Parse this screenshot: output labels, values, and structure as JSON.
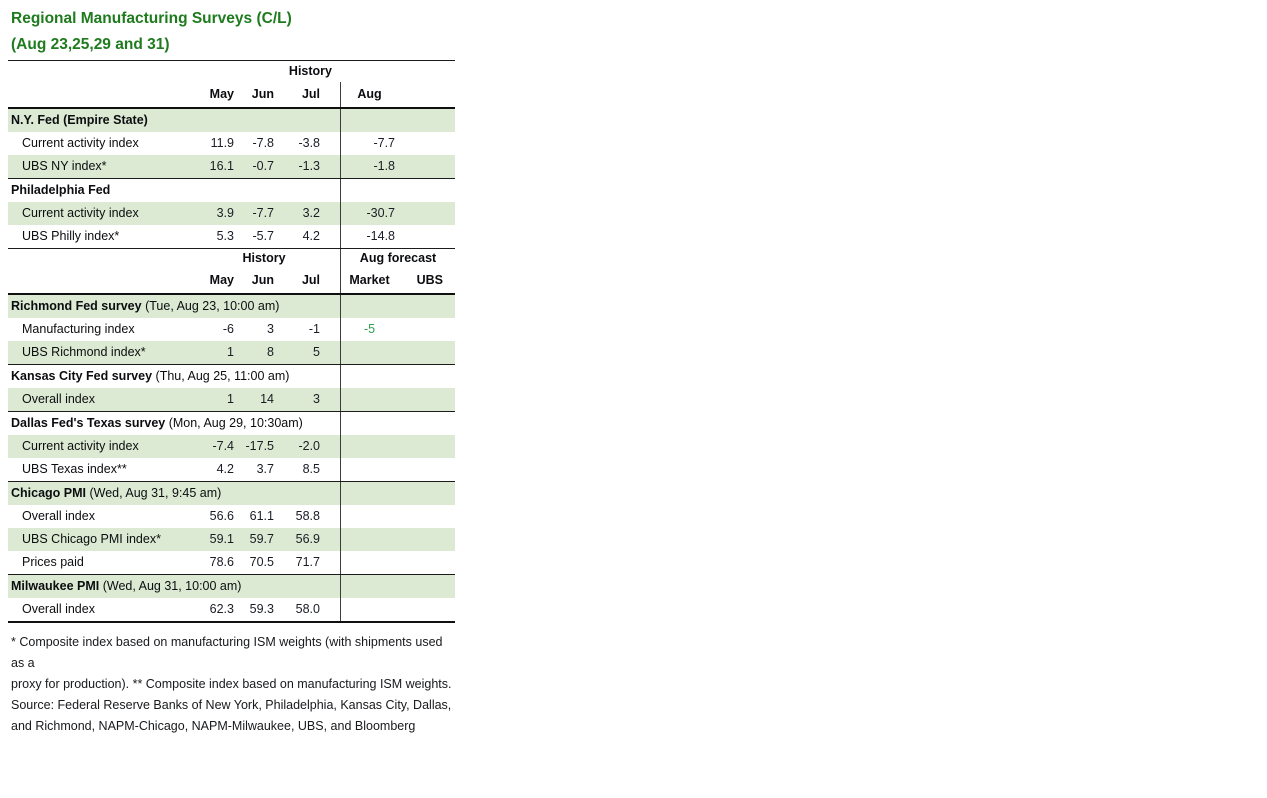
{
  "title": {
    "line1": "Regional Manufacturing Surveys (C/L)",
    "line2": "(Aug 23,25,29 and 31)"
  },
  "colors": {
    "title_green": "#1e7b1e",
    "row_shade": "#dcead3",
    "forecast_green": "#2f9e4f",
    "ink": "#191c24"
  },
  "block1": {
    "history_label": "History",
    "columns": [
      "May",
      "Jun",
      "Jul"
    ],
    "aug_label": "Aug",
    "sections": [
      {
        "header": "N.Y. Fed (Empire State)",
        "rows": [
          {
            "label": "Current activity index",
            "may": "11.9",
            "jun": "-7.8",
            "jul": "-3.8",
            "aug": "-7.7"
          },
          {
            "label": "UBS NY index*",
            "may": "16.1",
            "jun": "-0.7",
            "jul": "-1.3",
            "aug": "-1.8"
          }
        ]
      },
      {
        "header": "Philadelphia Fed",
        "rows": [
          {
            "label": "Current activity index",
            "may": "3.9",
            "jun": "-7.7",
            "jul": "3.2",
            "aug": "-30.7"
          },
          {
            "label": "UBS Philly index*",
            "may": "5.3",
            "jun": "-5.7",
            "jul": "4.2",
            "aug": "-14.8"
          }
        ]
      }
    ]
  },
  "block2": {
    "history_label": "History",
    "forecast_label": "Aug forecast",
    "columns": [
      "May",
      "Jun",
      "Jul"
    ],
    "forecast_columns": [
      "Market",
      "UBS"
    ],
    "sections": [
      {
        "header": "Richmond Fed survey",
        "header_note": "(Tue, Aug 23, 10:00 am)",
        "rows": [
          {
            "label": "Manufacturing index",
            "may": "-6",
            "jun": "3",
            "jul": "-1",
            "market": "-5",
            "ubs": ""
          },
          {
            "label": "UBS Richmond index*",
            "may": "1",
            "jun": "8",
            "jul": "5",
            "market": "",
            "ubs": ""
          }
        ]
      },
      {
        "header": "Kansas City Fed survey",
        "header_note": "(Thu, Aug 25, 11:00 am)",
        "rows": [
          {
            "label": "Overall index",
            "may": "1",
            "jun": "14",
            "jul": "3",
            "market": "",
            "ubs": ""
          }
        ]
      },
      {
        "header": "Dallas Fed's Texas survey",
        "header_note": "(Mon, Aug 29, 10:30am)",
        "rows": [
          {
            "label": "Current activity index",
            "may": "-7.4",
            "jun": "-17.5",
            "jul": "-2.0",
            "market": "",
            "ubs": ""
          },
          {
            "label": "UBS Texas index**",
            "may": "4.2",
            "jun": "3.7",
            "jul": "8.5",
            "market": "",
            "ubs": ""
          }
        ]
      },
      {
        "header": "Chicago PMI",
        "header_note": "(Wed, Aug 31, 9:45 am)",
        "rows": [
          {
            "label": "Overall index",
            "may": "56.6",
            "jun": "61.1",
            "jul": "58.8",
            "market": "",
            "ubs": ""
          },
          {
            "label": "UBS Chicago PMI index*",
            "may": "59.1",
            "jun": "59.7",
            "jul": "56.9",
            "market": "",
            "ubs": ""
          },
          {
            "label": "Prices paid",
            "may": "78.6",
            "jun": "70.5",
            "jul": "71.7",
            "market": "",
            "ubs": ""
          }
        ]
      },
      {
        "header": "Milwaukee PMI",
        "header_note": "(Wed, Aug 31, 10:00 am)",
        "rows": [
          {
            "label": "Overall index",
            "may": "62.3",
            "jun": "59.3",
            "jul": "58.0",
            "market": "",
            "ubs": ""
          }
        ]
      }
    ]
  },
  "footnote": {
    "lines": [
      "* Composite index based on manufacturing ISM weights (with shipments used as a",
      "proxy for production). ** Composite index based on manufacturing ISM weights.",
      "Source: Federal Reserve Banks of New York, Philadelphia, Kansas City, Dallas,",
      "and Richmond, NAPM-Chicago, NAPM-Milwaukee, UBS, and Bloomberg"
    ]
  }
}
